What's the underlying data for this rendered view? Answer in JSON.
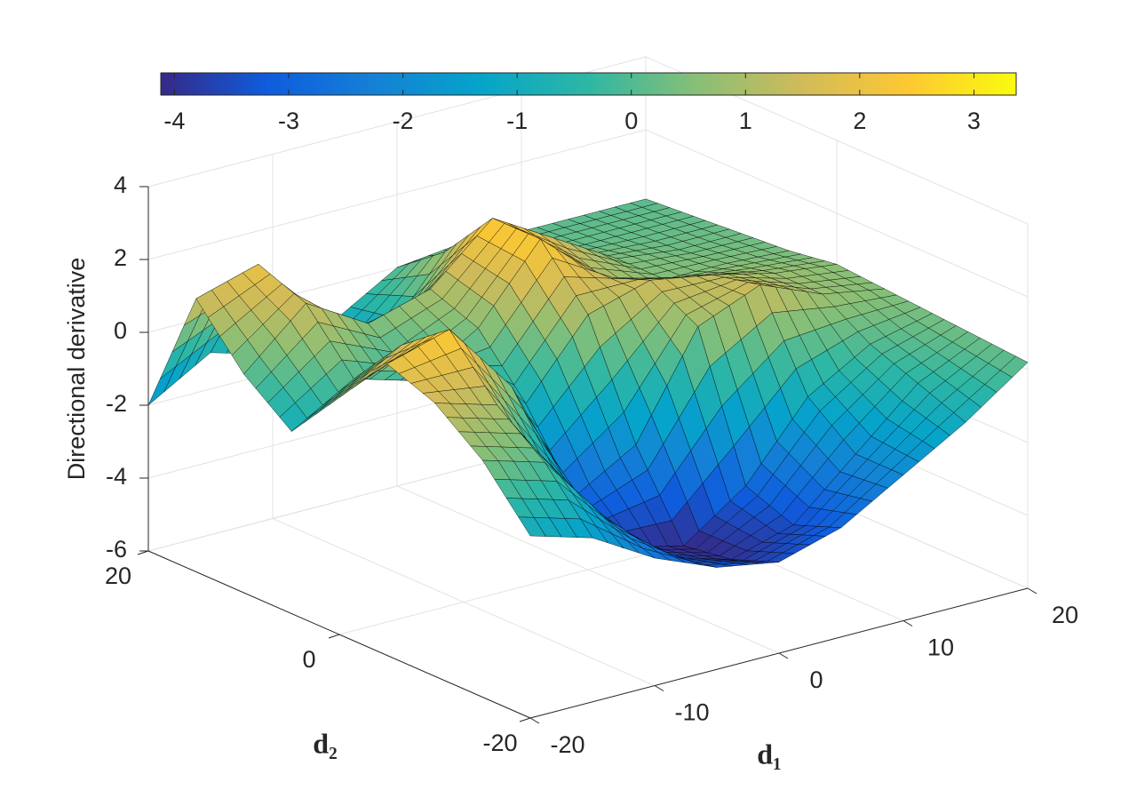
{
  "chart_data": {
    "type": "surface",
    "zlabel": "Directional derivative",
    "xlabel": "d₁",
    "ylabel": "d₂",
    "x": [
      -20,
      -15,
      -10,
      -5,
      0,
      5,
      10,
      15,
      20
    ],
    "y": [
      -20,
      -15,
      -10,
      -5,
      0,
      5,
      10,
      15,
      20
    ],
    "z": [
      [
        -1.0,
        -1.5,
        -2.5,
        -3.2,
        -3.5,
        -3.0,
        -2.0,
        -1.0,
        0.2
      ],
      [
        0.5,
        0.0,
        -2.0,
        -3.5,
        -4.0,
        -3.5,
        -2.0,
        -0.5,
        0.3
      ],
      [
        1.5,
        1.0,
        -1.5,
        -3.8,
        -4.2,
        -3.0,
        -1.0,
        0.0,
        0.4
      ],
      [
        2.0,
        2.5,
        0.5,
        -3.0,
        -2.0,
        0.8,
        1.5,
        0.8,
        0.5
      ],
      [
        0.5,
        1.5,
        1.0,
        -1.0,
        1.0,
        1.5,
        1.2,
        0.8,
        0.6
      ],
      [
        -1.0,
        0.0,
        -0.5,
        0.5,
        2.5,
        1.0,
        0.5,
        0.5,
        0.4
      ],
      [
        0.0,
        1.5,
        0.5,
        1.0,
        2.5,
        1.5,
        0.5,
        0.3,
        0.3
      ],
      [
        1.5,
        2.0,
        -0.5,
        -1.0,
        1.0,
        0.5,
        0.2,
        0.2,
        0.2
      ],
      [
        -2.0,
        -1.0,
        -1.5,
        -1.0,
        0.0,
        0.2,
        0.1,
        0.1,
        0.1
      ]
    ],
    "xlim": [
      -20,
      20
    ],
    "xticks": [
      -20,
      -10,
      0,
      10,
      20
    ],
    "ylim": [
      -20,
      20
    ],
    "yticks": [
      -20,
      0,
      20
    ],
    "zlim": [
      -6,
      4
    ],
    "zticks": [
      -6,
      -4,
      -2,
      0,
      2,
      4
    ],
    "colorbar": {
      "lim": [
        -4.12,
        3.37
      ],
      "ticks": [
        -4,
        -3,
        -2,
        -1,
        0,
        1,
        2,
        3
      ]
    },
    "colormap": [
      "#352a87",
      "#0f5cdd",
      "#1481d6",
      "#06a4ca",
      "#2eb7a4",
      "#87bf77",
      "#d1bb59",
      "#fec832",
      "#f9fb0e"
    ],
    "edgecolor": "#000000",
    "grid": true
  }
}
